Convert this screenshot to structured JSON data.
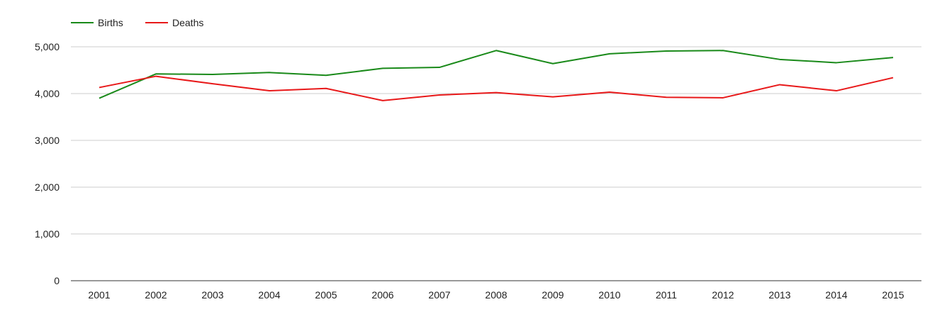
{
  "chart_data": {
    "type": "line",
    "title": "",
    "xlabel": "",
    "ylabel": "",
    "categories": [
      "2001",
      "2002",
      "2003",
      "2004",
      "2005",
      "2006",
      "2007",
      "2008",
      "2009",
      "2010",
      "2011",
      "2012",
      "2013",
      "2014",
      "2015"
    ],
    "series": [
      {
        "name": "Births",
        "color": "#1a8a1a",
        "values": [
          3900,
          4420,
          4410,
          4450,
          4390,
          4540,
          4560,
          4920,
          4640,
          4850,
          4910,
          4920,
          4730,
          4660,
          4770
        ]
      },
      {
        "name": "Deaths",
        "color": "#e8191a",
        "values": [
          4130,
          4370,
          4210,
          4060,
          4110,
          3850,
          3970,
          4020,
          3930,
          4030,
          3920,
          3910,
          4190,
          4060,
          4340
        ]
      }
    ],
    "ylim": [
      0,
      5000
    ],
    "yticks": [
      0,
      1000,
      2000,
      3000,
      4000,
      5000
    ],
    "ytick_labels": [
      "0",
      "1,000",
      "2,000",
      "3,000",
      "4,000",
      "5,000"
    ],
    "grid": "horizontal",
    "legend": "top-left"
  }
}
